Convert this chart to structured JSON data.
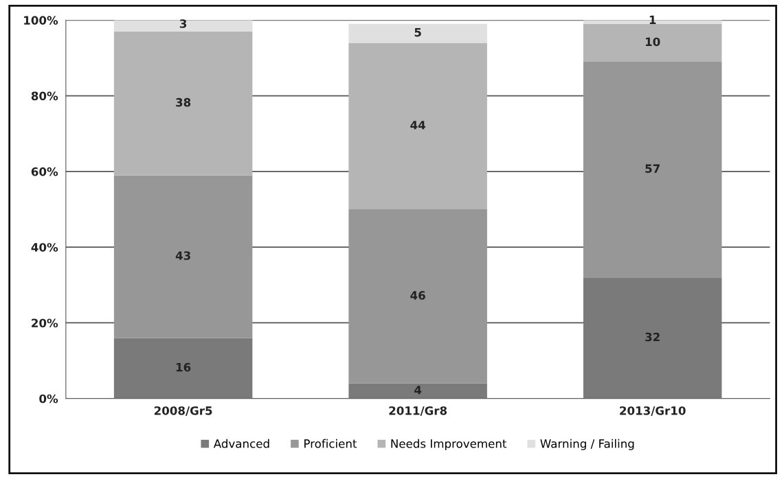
{
  "chart_data": {
    "type": "bar",
    "stacked": true,
    "categories": [
      "2008/Gr5",
      "2011/Gr8",
      "2013/Gr10"
    ],
    "series": [
      {
        "name": "Advanced",
        "color": "#7a7a7a",
        "values": [
          16,
          4,
          32
        ]
      },
      {
        "name": "Proficient",
        "color": "#979797",
        "values": [
          43,
          46,
          57
        ]
      },
      {
        "name": "Needs Improvement",
        "color": "#b5b5b5",
        "values": [
          38,
          44,
          10
        ]
      },
      {
        "name": "Warning / Failing",
        "color": "#e0e0e0",
        "values": [
          3,
          5,
          1
        ]
      }
    ],
    "ylim": [
      0,
      100
    ],
    "yticks": [
      {
        "value": 0,
        "label": "0%"
      },
      {
        "value": 20,
        "label": "20%"
      },
      {
        "value": 40,
        "label": "40%"
      },
      {
        "value": 60,
        "label": "60%"
      },
      {
        "value": 80,
        "label": "80%"
      },
      {
        "value": 100,
        "label": "100%"
      }
    ],
    "grid": "y",
    "legend": "bottom",
    "data_labels": true
  }
}
